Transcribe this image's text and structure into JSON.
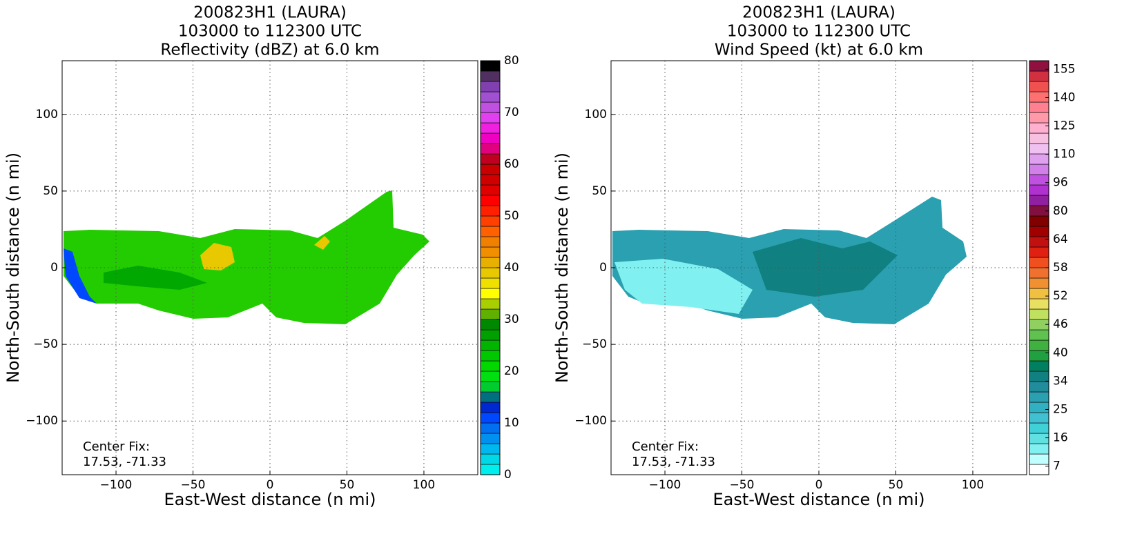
{
  "chart_data": [
    {
      "type": "contour",
      "title": [
        "200823H1 (LAURA)",
        "103000 to 112300 UTC",
        "Reflectivity (dBZ) at 6.0 km"
      ],
      "xlabel": "East-West distance (n mi)",
      "ylabel": "North-South distance (n mi)",
      "xlim": [
        -135,
        135
      ],
      "ylim": [
        -135,
        135
      ],
      "xticks": [
        {
          "value": -100,
          "label": "−100"
        },
        {
          "value": -50,
          "label": "−50"
        },
        0,
        50,
        100
      ],
      "yticks": [
        {
          "value": -100,
          "label": "−100"
        },
        {
          "value": -50,
          "label": "−50"
        },
        0,
        50,
        100
      ],
      "grid": true,
      "annotation": [
        "Center Fix:",
        "17.53, -71.33"
      ],
      "colorbar": {
        "clim": [
          0,
          80
        ],
        "scale": "linear",
        "ticks": [
          0,
          10,
          20,
          30,
          40,
          50,
          60,
          70,
          80
        ],
        "colors": [
          "#00eeee",
          "#00d8e8",
          "#00b8f0",
          "#0090f0",
          "#0070f0",
          "#0048ff",
          "#0028d0",
          "#007080",
          "#00cc30",
          "#00e010",
          "#00d800",
          "#00c800",
          "#00b400",
          "#00a000",
          "#008800",
          "#60b000",
          "#a8d000",
          "#ffff00",
          "#f0e000",
          "#e8c800",
          "#e8b000",
          "#f09000",
          "#f08000",
          "#ff6000",
          "#ff4000",
          "#ff2000",
          "#ff0000",
          "#e00000",
          "#d00000",
          "#c80000",
          "#c00020",
          "#e00080",
          "#f000c0",
          "#f020e0",
          "#e040f0",
          "#c050e0",
          "#a050d0",
          "#8040b0",
          "#503060",
          "#000000"
        ]
      }
    },
    {
      "type": "contour",
      "title": [
        "200823H1 (LAURA)",
        "103000 to 112300 UTC",
        "Wind Speed (kt) at 6.0 km"
      ],
      "xlabel": "East-West distance (n mi)",
      "ylabel": "North-South distance (n mi)",
      "xlim": [
        -135,
        135
      ],
      "ylim": [
        -135,
        135
      ],
      "xticks": [
        {
          "value": -100,
          "label": "−100"
        },
        {
          "value": -50,
          "label": "−50"
        },
        0,
        50,
        100
      ],
      "yticks": [
        {
          "value": -100,
          "label": "−100"
        },
        {
          "value": -50,
          "label": "−50"
        },
        0,
        50,
        100
      ],
      "grid": true,
      "annotation": [
        "Center Fix:",
        "17.53, -71.33"
      ],
      "colorbar": {
        "clim": [
          4,
          160
        ],
        "scale": "even-ticks",
        "ticks": [
          7,
          16,
          25,
          34,
          40,
          46,
          52,
          58,
          64,
          80,
          96,
          110,
          125,
          140,
          155
        ],
        "colors": [
          "#ffffff",
          "#c0ffff",
          "#80f0f0",
          "#60e0e0",
          "#40d0d8",
          "#40c0d0",
          "#30b0c0",
          "#2aa0b0",
          "#208c9c",
          "#108080",
          "#008060",
          "#20a040",
          "#40b040",
          "#60c050",
          "#90d060",
          "#c0e060",
          "#e8e060",
          "#f0c040",
          "#f09030",
          "#f07030",
          "#f05020",
          "#e02010",
          "#c01010",
          "#a00000",
          "#800000",
          "#801040",
          "#9020a0",
          "#b030d0",
          "#c050e0",
          "#d080e8",
          "#e0a0f0",
          "#f0c0f0",
          "#f8c0e0",
          "#ffb0d0",
          "#ff98a8",
          "#ff8090",
          "#ff7070",
          "#f05050",
          "#d03040",
          "#901040"
        ]
      }
    }
  ]
}
